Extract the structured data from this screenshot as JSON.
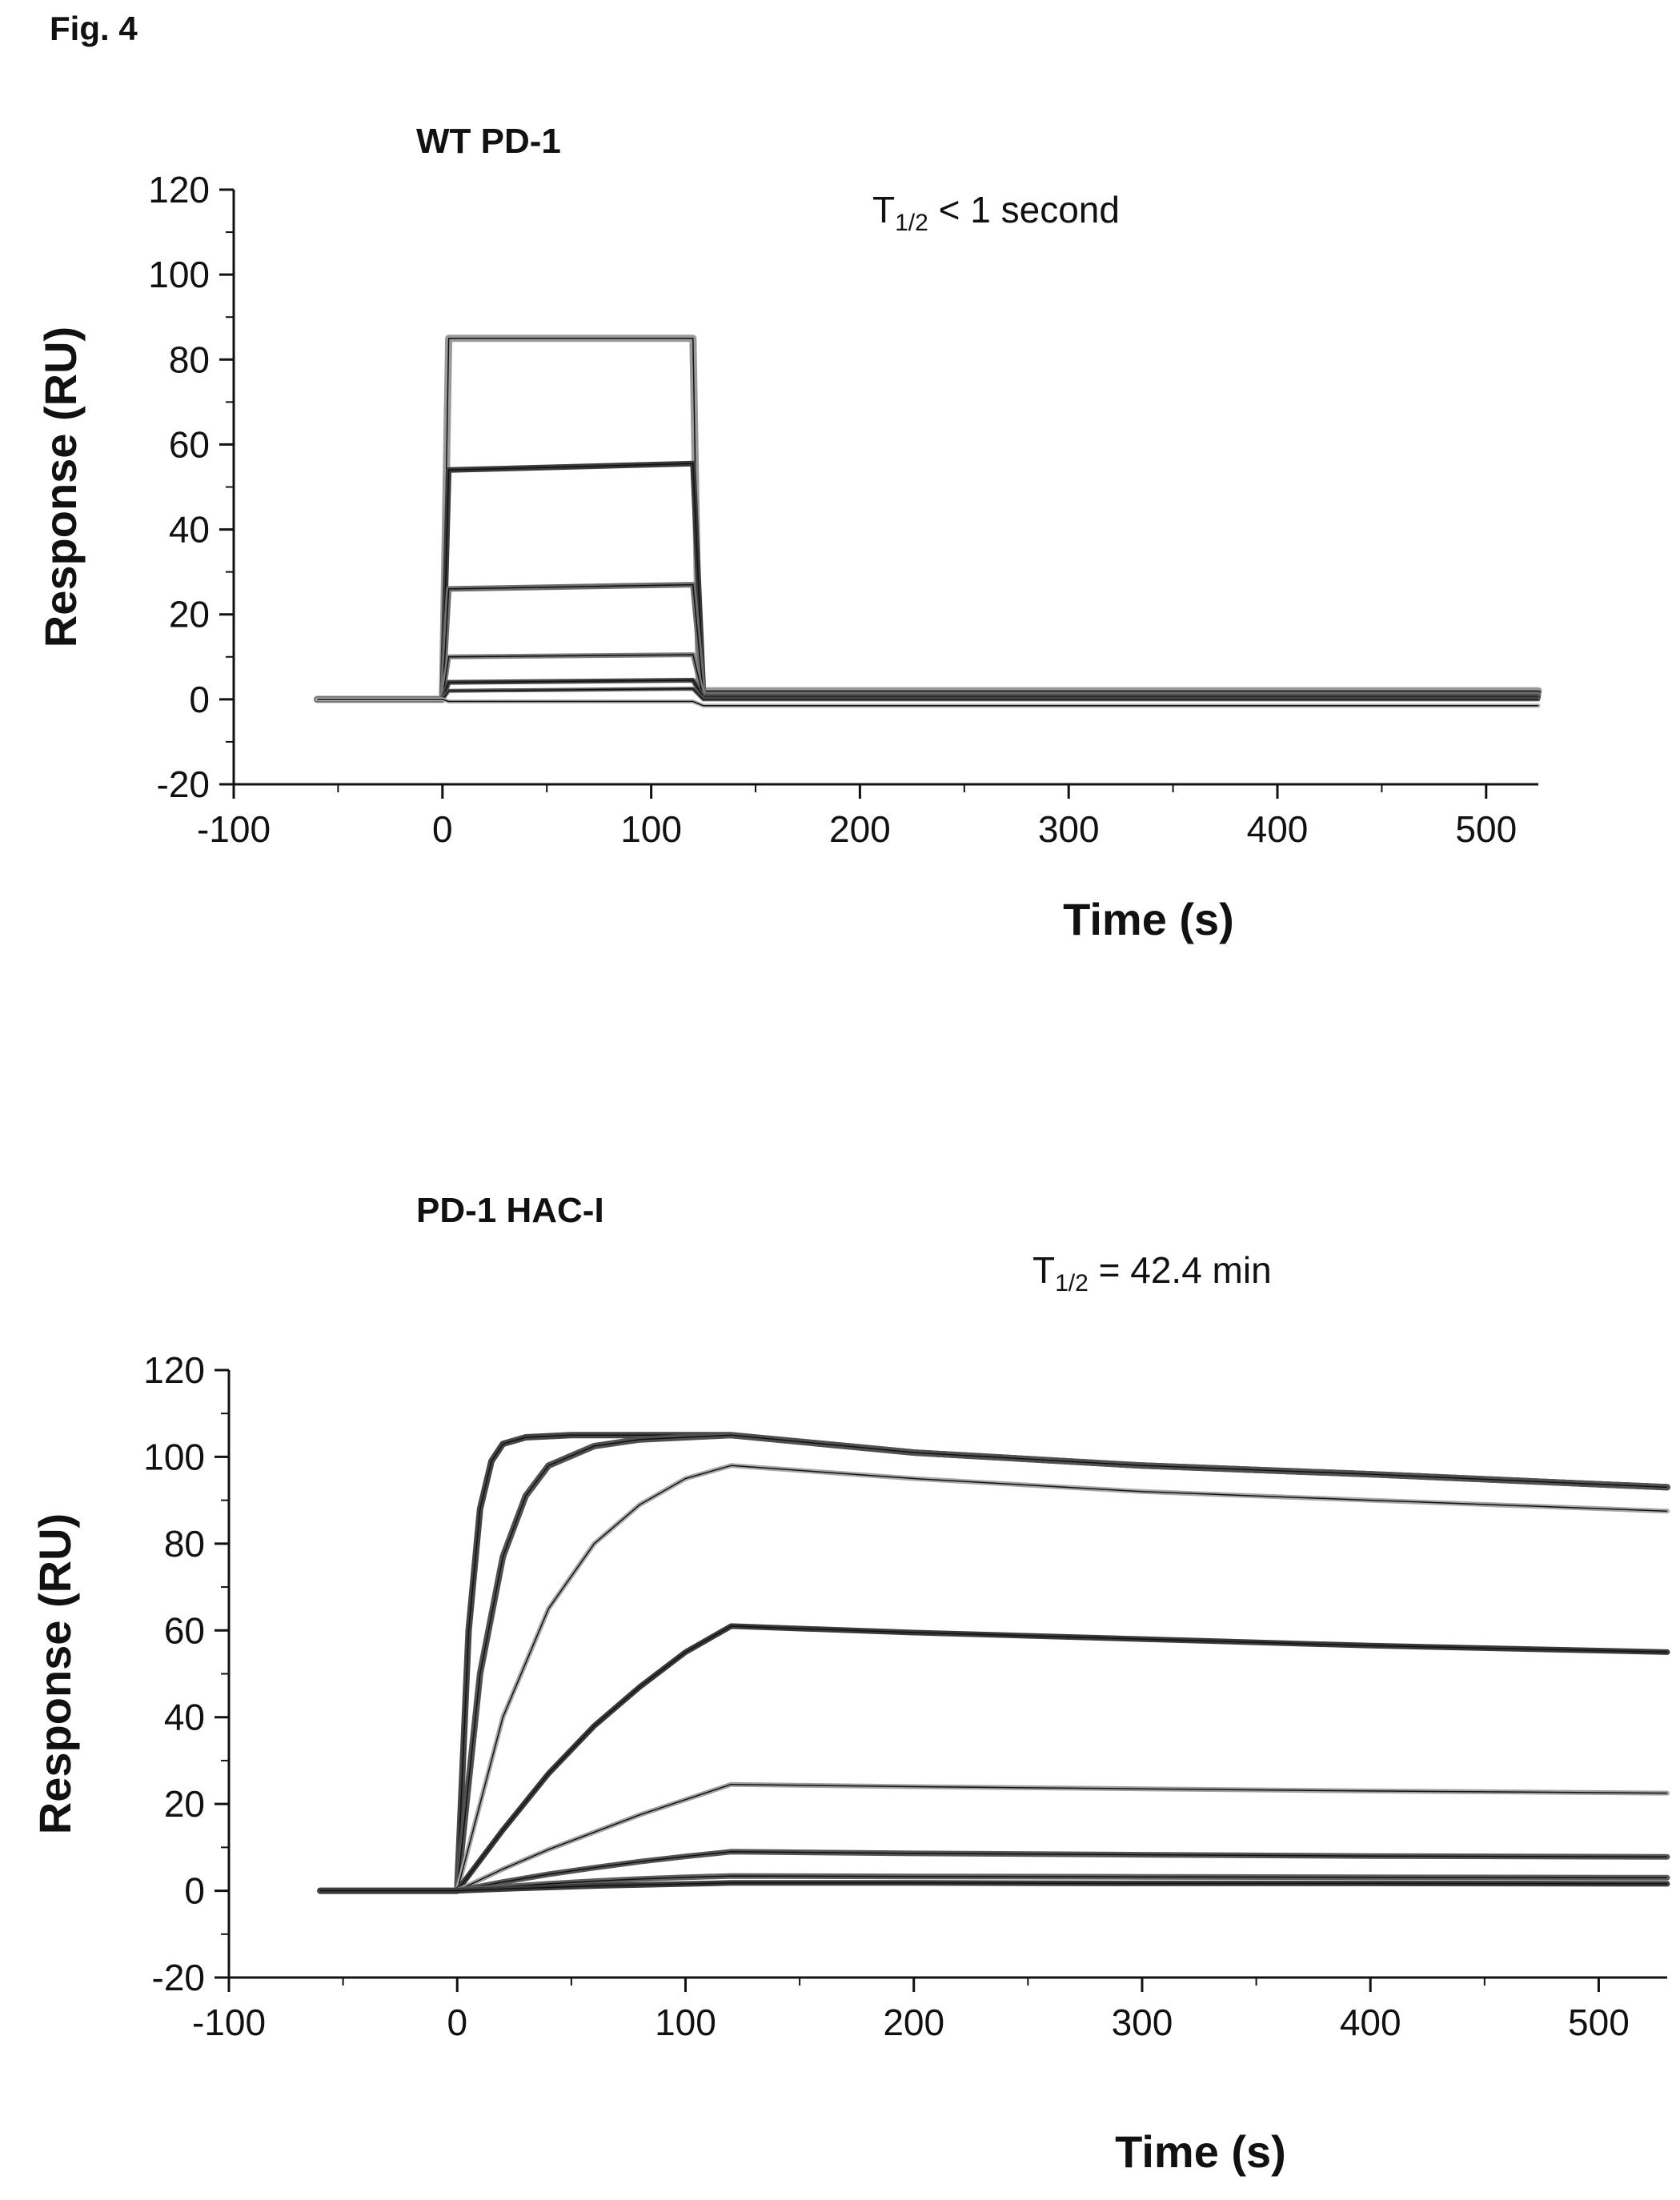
{
  "figure_label": "Fig. 4",
  "chart_data": [
    {
      "type": "line",
      "title": "WT PD-1",
      "annotation": {
        "prefix": "T",
        "sub": "1/2",
        "suffix": " < 1 second"
      },
      "xlabel": "Time (s)",
      "ylabel": "Response (RU)",
      "xlim": [
        -100,
        525
      ],
      "ylim": [
        -20,
        120
      ],
      "xticks": [
        -100,
        0,
        100,
        200,
        300,
        400,
        500
      ],
      "yticks": [
        -20,
        0,
        20,
        40,
        60,
        80,
        100,
        120
      ],
      "grid": false,
      "series": [
        {
          "color": "#9a9a9a",
          "width": 9,
          "x": [
            -60,
            0,
            3,
            120,
            123,
            525
          ],
          "y": [
            0,
            0,
            85,
            85,
            2,
            2
          ]
        },
        {
          "color": "#3a3a3a",
          "width": 7,
          "x": [
            -60,
            0,
            3,
            120,
            125,
            525
          ],
          "y": [
            0,
            0,
            54,
            55.5,
            1.5,
            1.5
          ]
        },
        {
          "color": "#6e6e6e",
          "width": 7,
          "x": [
            -60,
            0,
            3,
            120,
            125,
            525
          ],
          "y": [
            0,
            0,
            26,
            27,
            1,
            1
          ]
        },
        {
          "color": "#7e7e7e",
          "width": 6,
          "x": [
            -60,
            0,
            3,
            120,
            125,
            525
          ],
          "y": [
            0,
            0,
            10,
            10.5,
            0.5,
            0.5
          ]
        },
        {
          "color": "#444444",
          "width": 6,
          "x": [
            -60,
            0,
            3,
            120,
            125,
            525
          ],
          "y": [
            0,
            0,
            4,
            4.5,
            0.5,
            0.5
          ]
        },
        {
          "color": "#5a5a5a",
          "width": 5,
          "x": [
            -60,
            0,
            3,
            120,
            125,
            525
          ],
          "y": [
            0,
            0,
            2,
            2.5,
            0,
            0
          ]
        },
        {
          "color": "#b0b0b0",
          "width": 5,
          "x": [
            -60,
            0,
            3,
            120,
            125,
            525
          ],
          "y": [
            0,
            0,
            -0.5,
            -0.5,
            -1.5,
            -1.5
          ]
        }
      ]
    },
    {
      "type": "line",
      "title": "PD-1 HAC-I",
      "annotation": {
        "prefix": "T",
        "sub": "1/2",
        "suffix": " = 42.4 min"
      },
      "xlabel": "Time (s)",
      "ylabel": "Response (RU)",
      "xlim": [
        -100,
        530
      ],
      "ylim": [
        -20,
        120
      ],
      "xticks": [
        -100,
        0,
        100,
        200,
        300,
        400,
        500
      ],
      "yticks": [
        -20,
        0,
        20,
        40,
        60,
        80,
        100,
        120
      ],
      "grid": false,
      "series": [
        {
          "color": "#454545",
          "width": 8,
          "x": [
            -60,
            0,
            5,
            10,
            15,
            20,
            30,
            50,
            80,
            120,
            200,
            300,
            400,
            530
          ],
          "y": [
            0,
            0,
            60,
            88,
            99,
            103,
            104.5,
            105,
            105,
            105,
            101,
            98,
            96,
            93
          ]
        },
        {
          "color": "#505050",
          "width": 8,
          "x": [
            -60,
            0,
            10,
            20,
            30,
            40,
            60,
            80,
            120,
            200,
            300,
            400,
            530
          ],
          "y": [
            0,
            0,
            50,
            77,
            91,
            98,
            102.5,
            104,
            105,
            101,
            98,
            96,
            93
          ]
        },
        {
          "color": "#a8a8a8",
          "width": 6,
          "x": [
            -60,
            0,
            20,
            40,
            60,
            80,
            100,
            120,
            200,
            300,
            400,
            530
          ],
          "y": [
            0,
            0,
            40,
            65,
            80,
            89,
            95,
            98,
            95,
            92,
            90,
            87.5
          ]
        },
        {
          "color": "#3a3a3a",
          "width": 7,
          "x": [
            -60,
            0,
            20,
            40,
            60,
            80,
            100,
            120,
            200,
            300,
            400,
            530
          ],
          "y": [
            0,
            0,
            14,
            27,
            38,
            47,
            55,
            61,
            59.5,
            58,
            56.5,
            55
          ]
        },
        {
          "color": "#a0a0a0",
          "width": 6,
          "x": [
            -60,
            0,
            20,
            40,
            60,
            80,
            100,
            120,
            200,
            300,
            400,
            530
          ],
          "y": [
            0,
            0,
            5,
            9.5,
            13.5,
            17.5,
            21,
            24.5,
            24,
            23.5,
            23,
            22.5
          ]
        },
        {
          "color": "#555555",
          "width": 7,
          "x": [
            -60,
            0,
            20,
            40,
            60,
            80,
            100,
            120,
            200,
            300,
            400,
            530
          ],
          "y": [
            0,
            0,
            2,
            3.8,
            5.3,
            6.7,
            7.9,
            9,
            8.6,
            8.3,
            8,
            7.8
          ]
        },
        {
          "color": "#606060",
          "width": 7,
          "x": [
            -60,
            0,
            20,
            40,
            60,
            80,
            100,
            120,
            200,
            300,
            400,
            530
          ],
          "y": [
            0,
            0,
            0.9,
            1.6,
            2.2,
            2.7,
            3.1,
            3.4,
            3.3,
            3.2,
            3.1,
            3
          ]
        },
        {
          "color": "#3c3c3c",
          "width": 7,
          "x": [
            -60,
            0,
            20,
            60,
            120,
            200,
            300,
            400,
            530
          ],
          "y": [
            0,
            0,
            0.4,
            1.1,
            1.8,
            1.8,
            1.7,
            1.7,
            1.6
          ]
        }
      ]
    }
  ]
}
